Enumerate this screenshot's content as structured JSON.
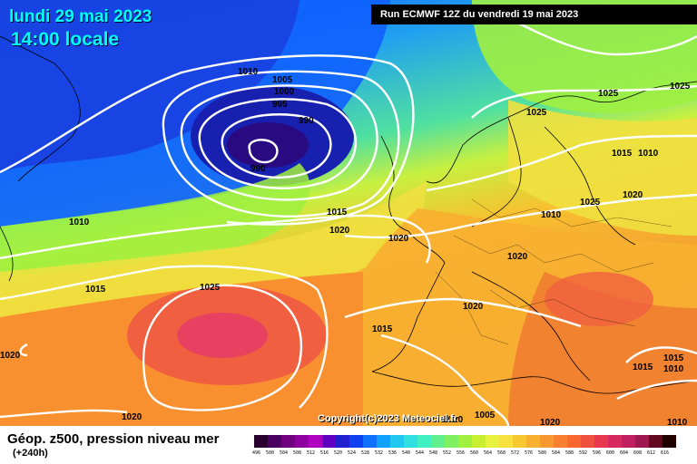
{
  "header": {
    "date": "lundi 29 mai 2023",
    "local_time": "14:00 locale",
    "run_info": "Run ECMWF 12Z du vendredi 19 mai 2023"
  },
  "copyright": "Copyright(c)2023 Meteociel.fr",
  "footer": {
    "title": "Géop. z500, pression niveau mer",
    "lead": "(+240h)"
  },
  "colors": {
    "deep_low": "#1a1aa8",
    "low": "#1060ff",
    "mid_cyan": "#30c0f0",
    "green": "#70e070",
    "yellow": "#f0f060",
    "orange": "#f0a030",
    "red_high": "#f04060"
  },
  "isobar_labels": [
    "1010",
    "1005",
    "1000",
    "995",
    "990",
    "990",
    "1010",
    "1015",
    "1020",
    "1020",
    "1015",
    "1025",
    "1015",
    "1020",
    "1020",
    "1025",
    "1025",
    "1025",
    "1025",
    "1015",
    "1010",
    "1020",
    "1020",
    "1020",
    "1015",
    "1015",
    "1010",
    "1020",
    "1005",
    "1010",
    "1010",
    "1020"
  ],
  "legend_scale": {
    "ticks": [
      "496",
      "500",
      "504",
      "508",
      "512",
      "516",
      "520",
      "524",
      "528",
      "532",
      "536",
      "540",
      "544",
      "548",
      "552",
      "556",
      "560",
      "564",
      "568",
      "572",
      "576",
      "580",
      "584",
      "588",
      "592",
      "596",
      "600",
      "604",
      "608",
      "612",
      "616"
    ],
    "colors": [
      "#2a0030",
      "#4a0060",
      "#700080",
      "#9000a0",
      "#b000c0",
      "#6000c0",
      "#2020d0",
      "#1040f0",
      "#1070ff",
      "#10a0ff",
      "#20c8f0",
      "#30e0e0",
      "#40f0c0",
      "#60f090",
      "#80f060",
      "#a0f040",
      "#c8f030",
      "#e8f040",
      "#f8e040",
      "#f8c830",
      "#f8b030",
      "#f89830",
      "#f88030",
      "#f86830",
      "#f05040",
      "#e83850",
      "#d82860",
      "#c02060",
      "#a01850",
      "#600820",
      "#200000"
    ]
  }
}
